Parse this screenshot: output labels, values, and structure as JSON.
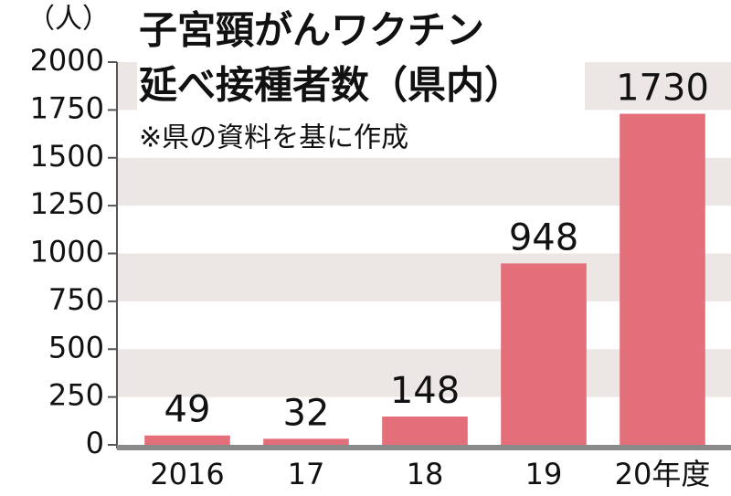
{
  "chart_data": {
    "type": "bar",
    "title": [
      "子宮頸がんワクチン",
      "延べ接種者数（県内）"
    ],
    "note": "※県の資料を基に作成",
    "y_unit": "（人）",
    "categories": [
      "2016",
      "17",
      "18",
      "19",
      "20年度"
    ],
    "values": [
      49,
      32,
      148,
      948,
      1730
    ],
    "color": "#e36f7a",
    "ylim": [
      0,
      2000
    ],
    "yticks": [
      0,
      250,
      500,
      750,
      1000,
      1250,
      1500,
      1750,
      2000
    ],
    "band_color": "#ece6e4"
  }
}
